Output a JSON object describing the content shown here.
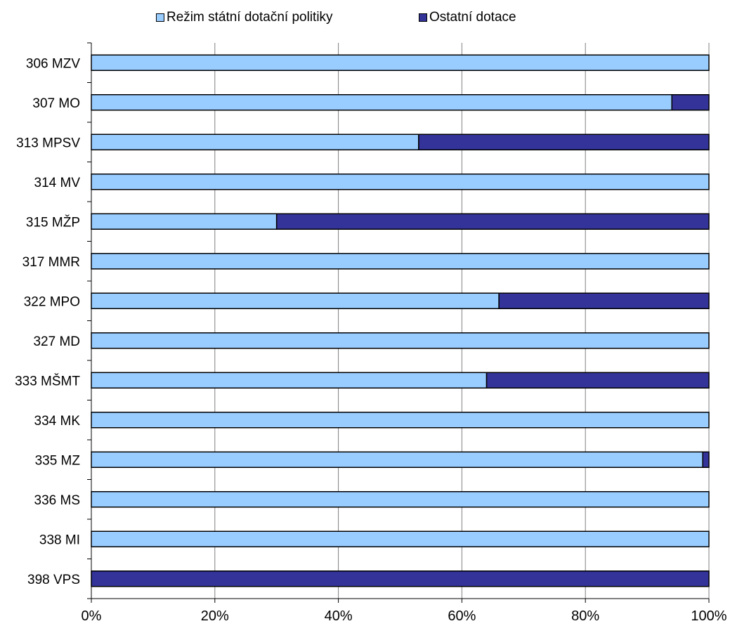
{
  "chart_data": {
    "type": "bar",
    "orientation": "horizontal",
    "stacked": "percent",
    "categories": [
      "306 MZV",
      "307 MO",
      "313 MPSV",
      "314 MV",
      "315 MŽP",
      "317 MMR",
      "322 MPO",
      "327 MD",
      "333 MŠMT",
      "334 MK",
      "335 MZ",
      "336 MS",
      "338 MI",
      "398 VPS"
    ],
    "series": [
      {
        "name": "Režim státní dotační politiky",
        "color": "#99CCFF",
        "values": [
          100,
          94,
          53,
          100,
          30,
          100,
          66,
          100,
          64,
          100,
          99,
          100,
          100,
          0
        ]
      },
      {
        "name": "Ostatní dotace",
        "color": "#333399",
        "values": [
          0,
          6,
          47,
          0,
          70,
          0,
          34,
          0,
          36,
          0,
          1,
          0,
          0,
          100
        ]
      }
    ],
    "x_ticks": [
      "0%",
      "20%",
      "40%",
      "60%",
      "80%",
      "100%"
    ],
    "xlim": [
      0,
      100
    ],
    "grid": "vertical",
    "legend_position": "top"
  }
}
